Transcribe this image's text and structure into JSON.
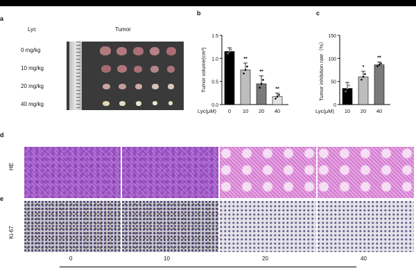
{
  "panel_a": {
    "letter": "a",
    "col_lyc": "Lyc",
    "col_tumor": "Tumor",
    "doses": [
      "0 mg/kg",
      "10 mg/kg",
      "20 mg/kg",
      "40 mg/kg"
    ]
  },
  "panel_d": {
    "letter": "d",
    "row_label": "HE"
  },
  "panel_e": {
    "letter": "e",
    "row_label": "Ki-67"
  },
  "micro_col_labels": [
    "0",
    "10",
    "20",
    "40"
  ],
  "chart_data": [
    {
      "panel": "b",
      "type": "bar",
      "ylabel": "Tumor volume(cm³)",
      "xlabel": "Lyc(μM)",
      "categories": [
        "0",
        "10",
        "20",
        "40"
      ],
      "values": [
        1.15,
        0.75,
        0.45,
        0.17
      ],
      "errors": [
        0.08,
        0.15,
        0.17,
        0.08
      ],
      "significance": [
        "",
        "**",
        "**",
        "**"
      ],
      "ylim": [
        0,
        1.5
      ],
      "yticks": [
        "0.0",
        "0.5",
        "1.0",
        "1.5"
      ],
      "bar_colors": [
        "#000000",
        "#bdbdbd",
        "#7a7a7a",
        "#e3e3e3"
      ]
    },
    {
      "panel": "c",
      "type": "bar",
      "ylabel": "Tumor inhibition rate（%）",
      "xlabel": "Lyc(μM)",
      "categories": [
        "10",
        "20",
        "40"
      ],
      "values": [
        35,
        60,
        86
      ],
      "errors": [
        13,
        12,
        6
      ],
      "significance": [
        "",
        "*",
        "**"
      ],
      "ylim": [
        0,
        150
      ],
      "yticks": [
        "0",
        "50",
        "100",
        "150"
      ],
      "bar_colors": [
        "#000000",
        "#bdbdbd",
        "#7a7a7a"
      ]
    }
  ]
}
